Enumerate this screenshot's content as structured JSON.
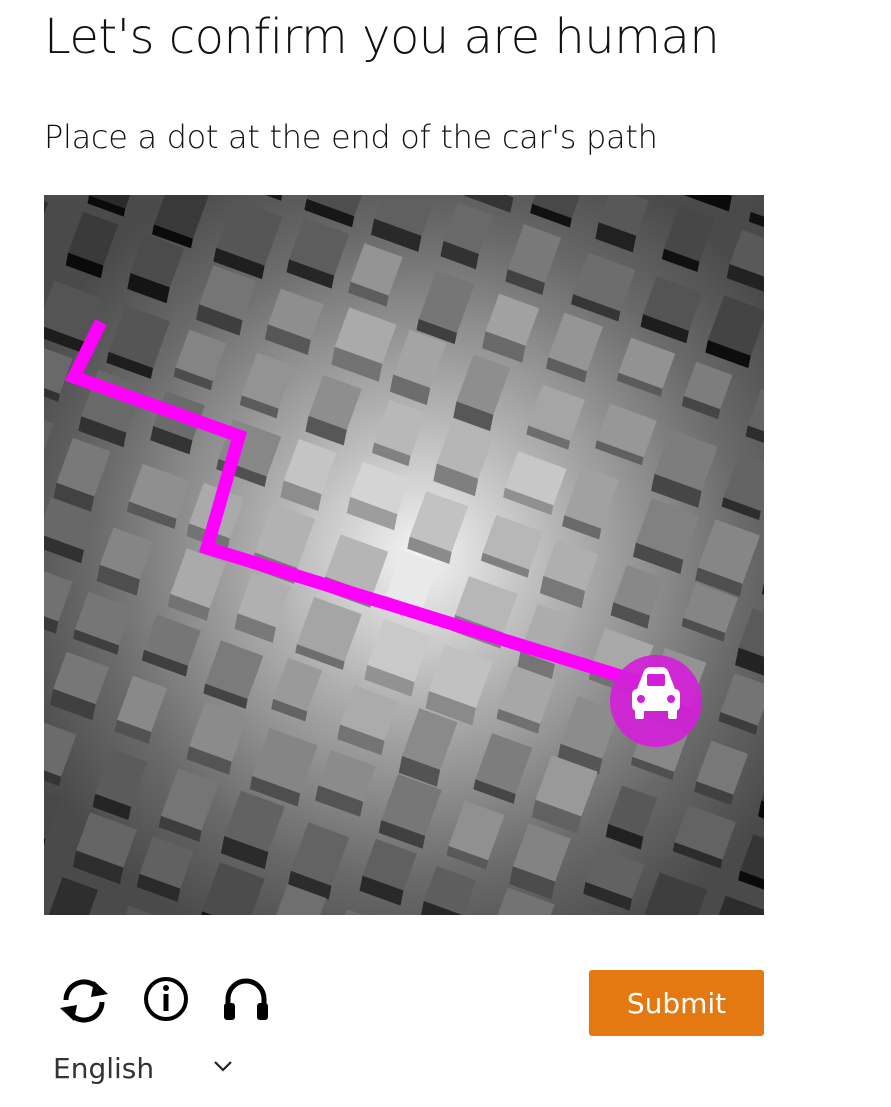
{
  "header": {
    "title": "Let's confirm you are human"
  },
  "challenge": {
    "instruction": "Place a dot at the end of the car's path",
    "path_color": "#ff00ff",
    "marker_icon": "car-icon"
  },
  "controls": {
    "refresh_icon": "refresh-icon",
    "info_icon": "info-icon",
    "audio_icon": "headphones-icon",
    "submit_label": "Submit",
    "submit_color": "#e47911"
  },
  "language": {
    "selected": "English",
    "icon": "chevron-down-icon"
  }
}
